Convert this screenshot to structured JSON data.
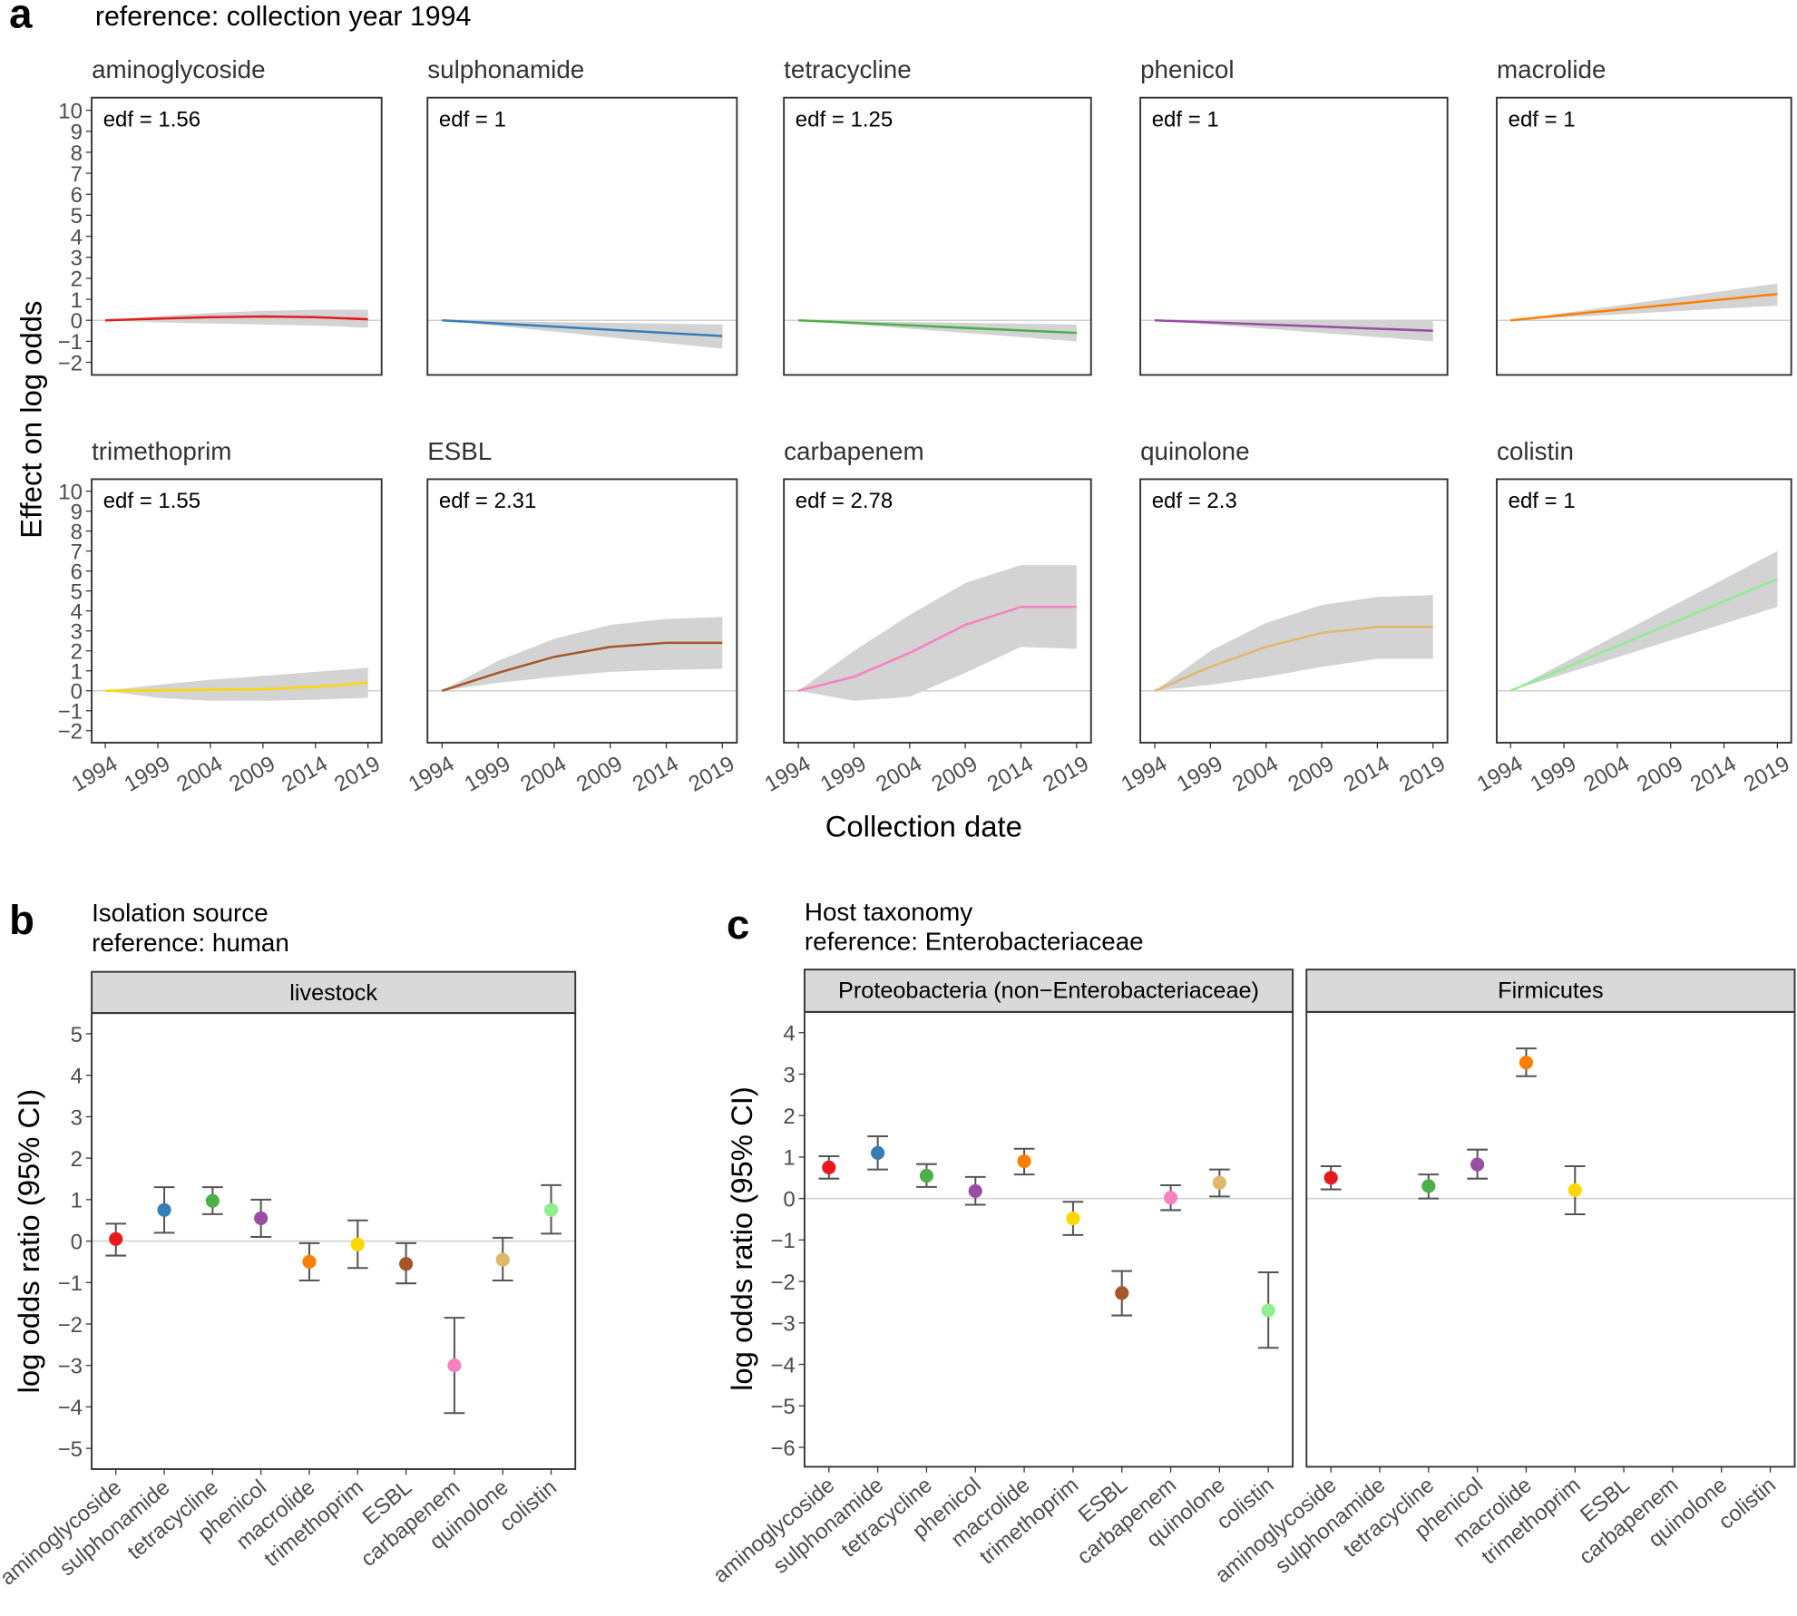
{
  "panels": [
    {
      "label": "a",
      "title": "reference: collection year 1994",
      "y_label": "Effect on log odds",
      "x_label": "Collection date"
    },
    {
      "label": "b",
      "title": "Isolation source",
      "subtitle": "reference: human",
      "y_label": "log odds ratio (95% CI)"
    },
    {
      "label": "c",
      "title": "Host taxonomy",
      "subtitle": "reference: Enterobacteriaceae",
      "y_label": "log odds ratio (95% CI)"
    }
  ],
  "chart_data": [
    {
      "type": "line",
      "title": "aminoglycoside",
      "annotation": "edf = 1.56",
      "color": "#e41a1c",
      "x": [
        1994,
        1999,
        2004,
        2009,
        2014,
        2019
      ],
      "values": [
        0,
        0.08,
        0.15,
        0.18,
        0.15,
        0.05
      ],
      "lower": [
        0,
        -0.1,
        -0.15,
        -0.2,
        -0.25,
        -0.35
      ],
      "upper": [
        0,
        0.2,
        0.35,
        0.45,
        0.5,
        0.5
      ],
      "xlim": [
        1992.7,
        2020.3
      ],
      "ylim": [
        -2.6,
        10.6
      ],
      "yticks": [
        {
          "value": -2,
          "label": "−2"
        },
        {
          "value": -1,
          "label": "−1"
        },
        0,
        1,
        2,
        3,
        4,
        5,
        6,
        7,
        8,
        9,
        10
      ]
    },
    {
      "type": "line",
      "title": "sulphonamide",
      "annotation": "edf = 1",
      "color": "#377eb8",
      "x": [
        1994,
        1999,
        2004,
        2009,
        2014,
        2019
      ],
      "values": [
        0,
        -0.15,
        -0.3,
        -0.45,
        -0.6,
        -0.75
      ],
      "lower": [
        0,
        -0.27,
        -0.54,
        -0.81,
        -1.08,
        -1.35
      ],
      "upper": [
        0,
        -0.04,
        -0.08,
        -0.12,
        -0.16,
        -0.2
      ],
      "xlim": [
        1992.7,
        2020.3
      ],
      "ylim": [
        -2.6,
        10.6
      ]
    },
    {
      "type": "line",
      "title": "tetracycline",
      "annotation": "edf = 1.25",
      "color": "#4daf4a",
      "x": [
        1994,
        1999,
        2004,
        2009,
        2014,
        2019
      ],
      "values": [
        0,
        -0.12,
        -0.24,
        -0.36,
        -0.48,
        -0.6
      ],
      "lower": [
        0,
        -0.2,
        -0.4,
        -0.6,
        -0.8,
        -1.0
      ],
      "upper": [
        0,
        -0.04,
        -0.08,
        -0.12,
        -0.16,
        -0.2
      ],
      "xlim": [
        1992.7,
        2020.3
      ],
      "ylim": [
        -2.6,
        10.6
      ]
    },
    {
      "type": "line",
      "title": "phenicol",
      "annotation": "edf = 1",
      "color": "#984ea3",
      "x": [
        1994,
        1999,
        2004,
        2009,
        2014,
        2019
      ],
      "values": [
        0,
        -0.1,
        -0.2,
        -0.3,
        -0.4,
        -0.5
      ],
      "lower": [
        0,
        -0.2,
        -0.4,
        -0.6,
        -0.8,
        -1.0
      ],
      "upper": [
        0,
        0,
        0,
        0,
        0,
        0
      ],
      "xlim": [
        1992.7,
        2020.3
      ],
      "ylim": [
        -2.6,
        10.6
      ]
    },
    {
      "type": "line",
      "title": "macrolide",
      "annotation": "edf = 1",
      "color": "#ff7f00",
      "x": [
        1994,
        1999,
        2004,
        2009,
        2014,
        2019
      ],
      "values": [
        0,
        0.25,
        0.5,
        0.75,
        1.0,
        1.25
      ],
      "lower": [
        0,
        0.14,
        0.28,
        0.42,
        0.56,
        0.7
      ],
      "upper": [
        0,
        0.35,
        0.7,
        1.05,
        1.4,
        1.75
      ],
      "xlim": [
        1992.7,
        2020.3
      ],
      "ylim": [
        -2.6,
        10.6
      ]
    },
    {
      "type": "line",
      "title": "trimethoprim",
      "annotation": "edf = 1.55",
      "color": "#ffd700",
      "x": [
        1994,
        1999,
        2004,
        2009,
        2014,
        2019
      ],
      "values": [
        0,
        0.02,
        0.05,
        0.08,
        0.2,
        0.4
      ],
      "lower": [
        0,
        -0.35,
        -0.5,
        -0.5,
        -0.45,
        -0.35
      ],
      "upper": [
        0,
        0.3,
        0.55,
        0.75,
        0.95,
        1.15
      ],
      "xlim": [
        1992.7,
        2020.3
      ],
      "ylim": [
        -2.6,
        10.6
      ],
      "xticks": [
        1994,
        1999,
        2004,
        2009,
        2014,
        2019
      ],
      "yticks": [
        {
          "value": -2,
          "label": "−2"
        },
        {
          "value": -1,
          "label": "−1"
        },
        0,
        1,
        2,
        3,
        4,
        5,
        6,
        7,
        8,
        9,
        10
      ]
    },
    {
      "type": "line",
      "title": "ESBL",
      "annotation": "edf = 2.31",
      "color": "#a65628",
      "x": [
        1994,
        1999,
        2004,
        2009,
        2014,
        2019
      ],
      "values": [
        0,
        0.9,
        1.7,
        2.2,
        2.4,
        2.4
      ],
      "lower": [
        0,
        0.4,
        0.7,
        0.95,
        1.05,
        1.1
      ],
      "upper": [
        0,
        1.5,
        2.6,
        3.3,
        3.6,
        3.7
      ],
      "xlim": [
        1992.7,
        2020.3
      ],
      "ylim": [
        -2.6,
        10.6
      ],
      "xticks": [
        1994,
        1999,
        2004,
        2009,
        2014,
        2019
      ]
    },
    {
      "type": "line",
      "title": "carbapenem",
      "annotation": "edf = 2.78",
      "color": "#f781bf",
      "x": [
        1994,
        1999,
        2004,
        2009,
        2014,
        2019
      ],
      "values": [
        0,
        0.7,
        1.9,
        3.3,
        4.2,
        4.2
      ],
      "lower": [
        0,
        -0.5,
        -0.3,
        0.9,
        2.2,
        2.1
      ],
      "upper": [
        0,
        2.0,
        3.8,
        5.4,
        6.3,
        6.3
      ],
      "xlim": [
        1992.7,
        2020.3
      ],
      "ylim": [
        -2.6,
        10.6
      ],
      "xticks": [
        1994,
        1999,
        2004,
        2009,
        2014,
        2019
      ]
    },
    {
      "type": "line",
      "title": "quinolone",
      "annotation": "edf = 2.3",
      "color": "#e0b86b",
      "x": [
        1994,
        1999,
        2004,
        2009,
        2014,
        2019
      ],
      "values": [
        0,
        1.2,
        2.2,
        2.9,
        3.2,
        3.2
      ],
      "lower": [
        0,
        0.3,
        0.7,
        1.2,
        1.6,
        1.6
      ],
      "upper": [
        0,
        2.0,
        3.4,
        4.3,
        4.7,
        4.8
      ],
      "xlim": [
        1992.7,
        2020.3
      ],
      "ylim": [
        -2.6,
        10.6
      ],
      "xticks": [
        1994,
        1999,
        2004,
        2009,
        2014,
        2019
      ]
    },
    {
      "type": "line",
      "title": "colistin",
      "annotation": "edf = 1",
      "color": "#90ee90",
      "x": [
        1994,
        1999,
        2004,
        2009,
        2014,
        2019
      ],
      "values": [
        0,
        1.12,
        2.24,
        3.36,
        4.48,
        5.6
      ],
      "lower": [
        0,
        0.84,
        1.68,
        2.52,
        3.36,
        4.2
      ],
      "upper": [
        0,
        1.4,
        2.8,
        4.2,
        5.6,
        7.0
      ],
      "xlim": [
        1992.7,
        2020.3
      ],
      "ylim": [
        -2.6,
        10.6
      ],
      "xticks": [
        1994,
        1999,
        2004,
        2009,
        2014,
        2019
      ]
    },
    {
      "type": "errorbar",
      "title": "livestock",
      "categories": [
        "aminoglycoside",
        "sulphonamide",
        "tetracycline",
        "phenicol",
        "macrolide",
        "trimethoprim",
        "ESBL",
        "carbapenem",
        "quinolone",
        "colistin"
      ],
      "values": [
        0.05,
        0.75,
        0.97,
        0.55,
        -0.5,
        -0.08,
        -0.55,
        -3.0,
        -0.45,
        0.75
      ],
      "lower": [
        -0.35,
        0.2,
        0.65,
        0.1,
        -0.95,
        -0.65,
        -1.02,
        -4.15,
        -0.95,
        0.18
      ],
      "upper": [
        0.42,
        1.3,
        1.3,
        1.0,
        -0.05,
        0.5,
        -0.05,
        -1.85,
        0.08,
        1.35
      ],
      "colors": [
        "#e41a1c",
        "#377eb8",
        "#4daf4a",
        "#984ea3",
        "#ff7f00",
        "#ffd700",
        "#a65628",
        "#f781bf",
        "#e0b86b",
        "#90ee90"
      ],
      "ylim": [
        -5.5,
        5.5
      ],
      "yticks": [
        {
          "value": -5,
          "label": "−5"
        },
        {
          "value": -4,
          "label": "−4"
        },
        {
          "value": -3,
          "label": "−3"
        },
        {
          "value": -2,
          "label": "−2"
        },
        {
          "value": -1,
          "label": "−1"
        },
        0,
        1,
        2,
        3,
        4,
        5
      ]
    },
    {
      "type": "errorbar",
      "title": "Proteobacteria (non−Enterobacteriaceae)",
      "categories": [
        "aminoglycoside",
        "sulphonamide",
        "tetracycline",
        "phenicol",
        "macrolide",
        "trimethoprim",
        "ESBL",
        "carbapenem",
        "quinolone",
        "colistin"
      ],
      "values": [
        0.75,
        1.1,
        0.55,
        0.18,
        0.9,
        -0.48,
        -2.28,
        0.02,
        0.38,
        -2.7
      ],
      "lower": [
        0.48,
        0.7,
        0.28,
        -0.15,
        0.58,
        -0.88,
        -2.82,
        -0.28,
        0.05,
        -3.6
      ],
      "upper": [
        1.02,
        1.5,
        0.83,
        0.52,
        1.2,
        -0.08,
        -1.75,
        0.32,
        0.7,
        -1.78
      ],
      "colors": [
        "#e41a1c",
        "#377eb8",
        "#4daf4a",
        "#984ea3",
        "#ff7f00",
        "#ffd700",
        "#a65628",
        "#f781bf",
        "#e0b86b",
        "#90ee90"
      ],
      "ylim": [
        -6.47,
        4.5
      ],
      "yticks": [
        {
          "value": -6,
          "label": "−6"
        },
        {
          "value": -5,
          "label": "−5"
        },
        {
          "value": -4,
          "label": "−4"
        },
        {
          "value": -3,
          "label": "−3"
        },
        {
          "value": -2,
          "label": "−2"
        },
        {
          "value": -1,
          "label": "−1"
        },
        0,
        1,
        2,
        3,
        4
      ]
    },
    {
      "type": "errorbar",
      "title": "Firmicutes",
      "categories": [
        "aminoglycoside",
        "sulphonamide",
        "tetracycline",
        "phenicol",
        "macrolide",
        "trimethoprim",
        "ESBL",
        "carbapenem",
        "quinolone",
        "colistin"
      ],
      "values": [
        0.5,
        null,
        0.3,
        0.82,
        3.28,
        0.2,
        null,
        null,
        null,
        null
      ],
      "lower": [
        0.22,
        null,
        0,
        0.48,
        2.95,
        -0.38,
        null,
        null,
        null,
        null
      ],
      "upper": [
        0.78,
        null,
        0.58,
        1.18,
        3.62,
        0.78,
        null,
        null,
        null,
        null
      ],
      "colors": [
        "#e41a1c",
        "#377eb8",
        "#4daf4a",
        "#984ea3",
        "#ff7f00",
        "#ffd700",
        "#a65628",
        "#f781bf",
        "#e0b86b",
        "#90ee90"
      ],
      "ylim": [
        -6.47,
        4.5
      ]
    }
  ]
}
